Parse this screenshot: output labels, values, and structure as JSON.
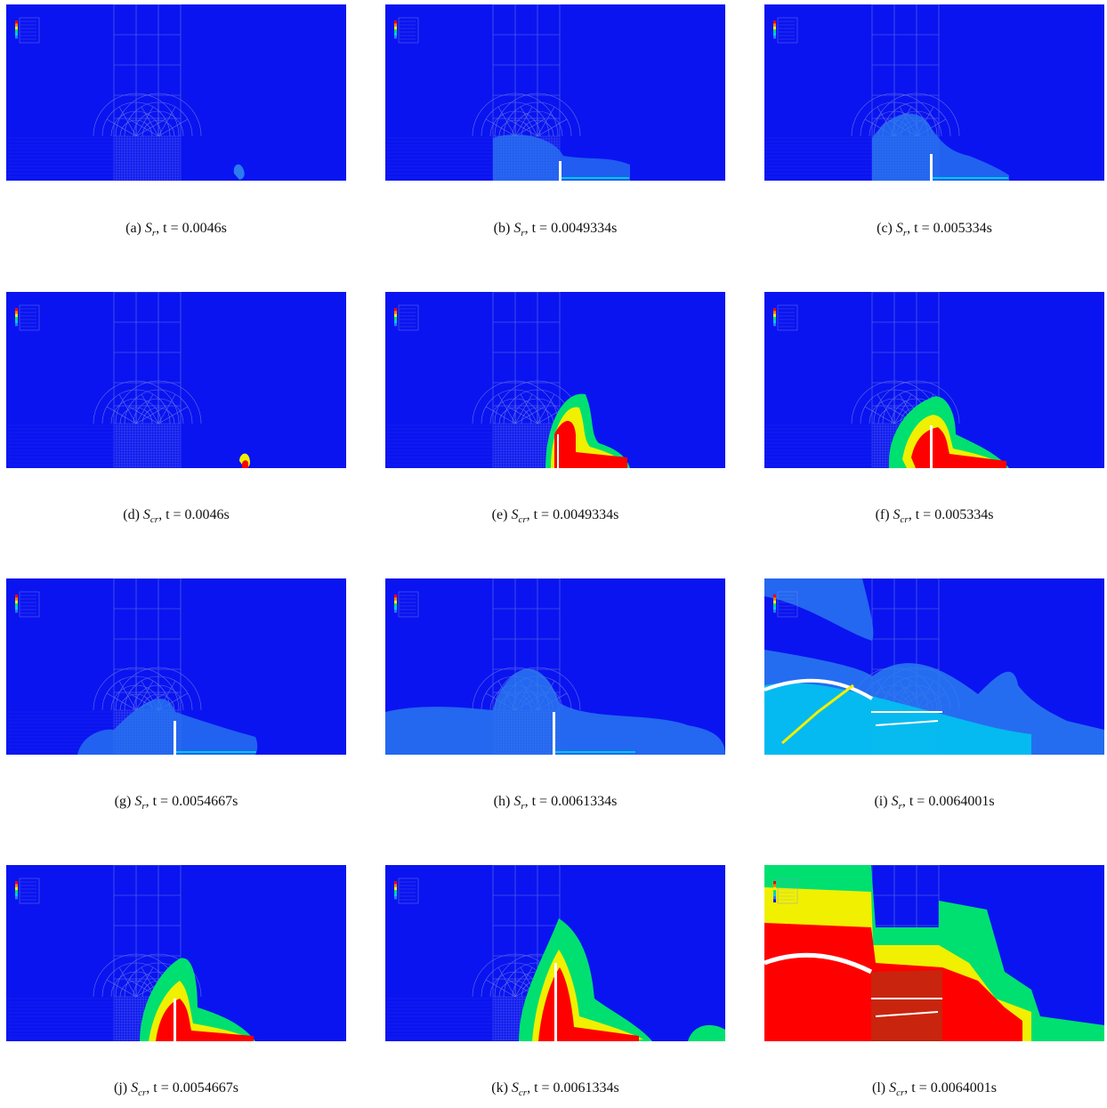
{
  "figure": {
    "panels": [
      {
        "label": "(a)",
        "quantity": "S",
        "sub": "r",
        "time_text": "t = 0.0046s",
        "kind": "r",
        "stage": 0
      },
      {
        "label": "(b)",
        "quantity": "S",
        "sub": "r",
        "time_text": "t = 0.0049334s",
        "kind": "r",
        "stage": 1
      },
      {
        "label": "(c)",
        "quantity": "S",
        "sub": "r",
        "time_text": "t = 0.005334s",
        "kind": "r",
        "stage": 2
      },
      {
        "label": "(d)",
        "quantity": "S",
        "sub": "cr",
        "time_text": "t = 0.0046s",
        "kind": "cr",
        "stage": 0
      },
      {
        "label": "(e)",
        "quantity": "S",
        "sub": "cr",
        "time_text": "t = 0.0049334s",
        "kind": "cr",
        "stage": 1
      },
      {
        "label": "(f)",
        "quantity": "S",
        "sub": "cr",
        "time_text": "t = 0.005334s",
        "kind": "cr",
        "stage": 2
      },
      {
        "label": "(g)",
        "quantity": "S",
        "sub": "r",
        "time_text": "t = 0.0054667s",
        "kind": "r",
        "stage": 3
      },
      {
        "label": "(h)",
        "quantity": "S",
        "sub": "r",
        "time_text": "t = 0.0061334s",
        "kind": "r",
        "stage": 4
      },
      {
        "label": "(i)",
        "quantity": "S",
        "sub": "r",
        "time_text": "t = 0.0064001s",
        "kind": "r",
        "stage": 5
      },
      {
        "label": "(j)",
        "quantity": "S",
        "sub": "cr",
        "time_text": "t = 0.0054667s",
        "kind": "cr",
        "stage": 3
      },
      {
        "label": "(k)",
        "quantity": "S",
        "sub": "cr",
        "time_text": "t = 0.0061334s",
        "kind": "cr",
        "stage": 4
      },
      {
        "label": "(l)",
        "quantity": "S",
        "sub": "cr",
        "time_text": "t = 0.0064001s",
        "kind": "cr",
        "stage": 5
      }
    ]
  },
  "colors": {
    "background": "#0a14f0",
    "mesh_line": "#7f8fe8",
    "light_blue": "#2a7cf0",
    "cyan": "#00c8f0",
    "green": "#00e070",
    "yellow": "#f0f000",
    "orange": "#ff8000",
    "red": "#ff0000",
    "dark_red": "#c02a10",
    "crack_white": "#ffffff"
  }
}
